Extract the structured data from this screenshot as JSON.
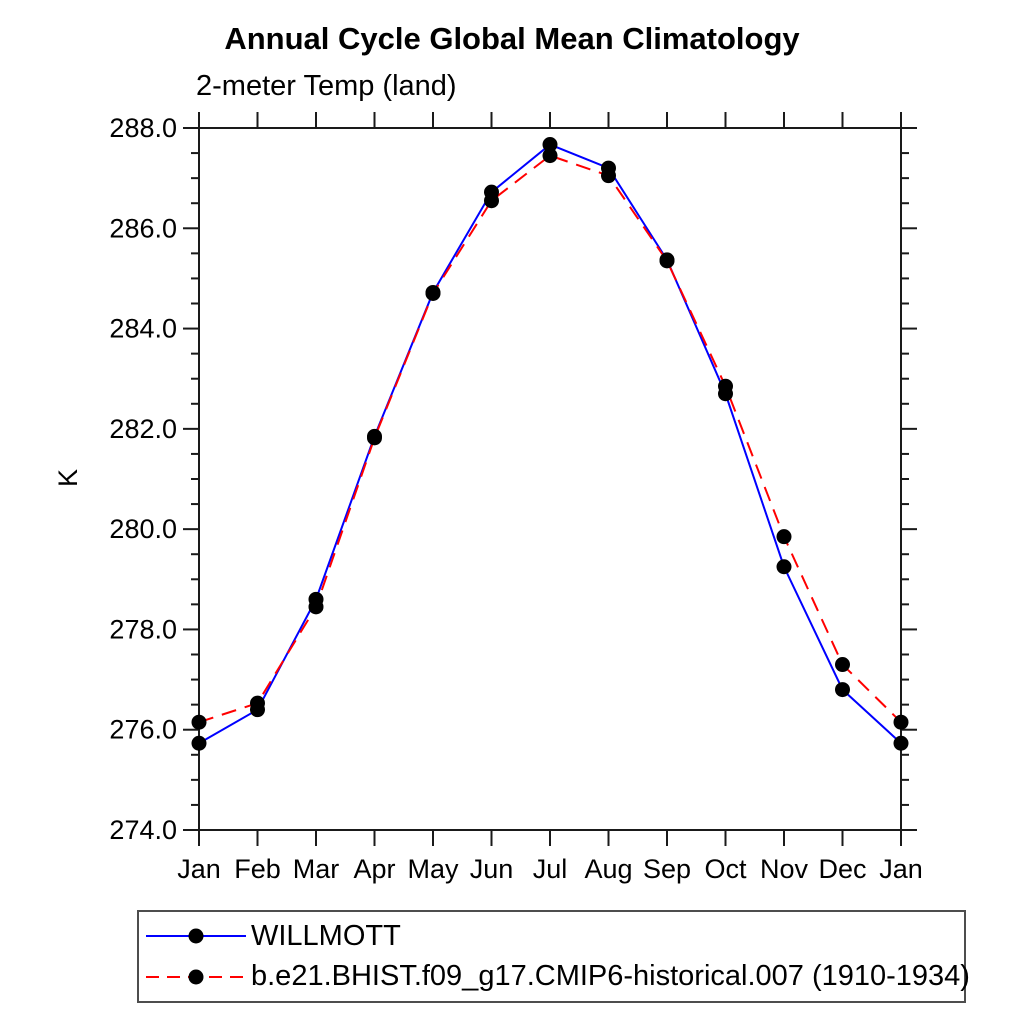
{
  "page": {
    "background_color": "#ffffff"
  },
  "chart_data": {
    "type": "line",
    "title": "Annual Cycle Global Mean Climatology",
    "subtitle": "2-meter Temp (land)",
    "ylabel": "K",
    "xlabel": "",
    "categories": [
      "Jan",
      "Feb",
      "Mar",
      "Apr",
      "May",
      "Jun",
      "Jul",
      "Aug",
      "Sep",
      "Oct",
      "Nov",
      "Dec",
      "Jan"
    ],
    "ylim": [
      274.0,
      288.0
    ],
    "ytick_major_step": 2.0,
    "ytick_minor_step": 0.5,
    "ytick_labels": [
      "274.0",
      "276.0",
      "278.0",
      "280.0",
      "282.0",
      "284.0",
      "286.0",
      "288.0"
    ],
    "grid": false,
    "legend_position": "bottom-left",
    "axis_color": "#1a1a1a",
    "marker_shape": "filled-circle",
    "series": [
      {
        "name": "WILLMOTT",
        "color": "#0000ff",
        "line_style": "solid",
        "marker_color": "#000000",
        "values": [
          275.73,
          276.4,
          278.6,
          281.85,
          284.72,
          286.72,
          287.67,
          287.2,
          285.37,
          282.7,
          279.25,
          276.8,
          275.73
        ]
      },
      {
        "name": "b.e21.BHIST.f09_g17.CMIP6-historical.007 (1910-1934)",
        "color": "#ff0000",
        "line_style": "dashed",
        "marker_color": "#000000",
        "values": [
          276.15,
          276.53,
          278.45,
          281.82,
          284.7,
          286.55,
          287.45,
          287.05,
          285.35,
          282.85,
          279.85,
          277.3,
          276.15
        ]
      }
    ]
  }
}
